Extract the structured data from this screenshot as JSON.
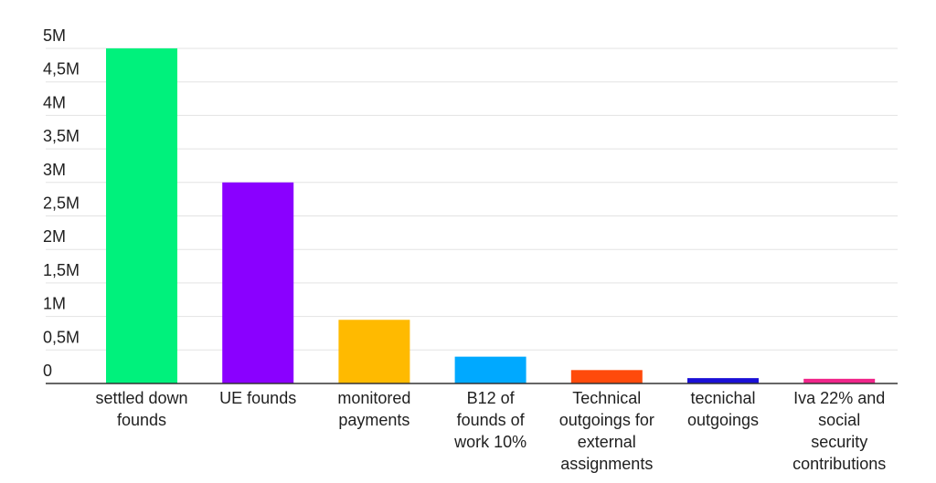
{
  "chart_data": {
    "type": "bar",
    "title": "",
    "xlabel": "",
    "ylabel": "",
    "ylim": [
      0,
      5000000
    ],
    "grid": true,
    "legend": "none",
    "y_ticks": [
      {
        "value": 0,
        "label": "0"
      },
      {
        "value": 500000,
        "label": "0,5M"
      },
      {
        "value": 1000000,
        "label": "1M"
      },
      {
        "value": 1500000,
        "label": "1,5M"
      },
      {
        "value": 2000000,
        "label": "2M"
      },
      {
        "value": 2500000,
        "label": "2,5M"
      },
      {
        "value": 3000000,
        "label": "3M"
      },
      {
        "value": 3500000,
        "label": "3,5M"
      },
      {
        "value": 4000000,
        "label": "4M"
      },
      {
        "value": 4500000,
        "label": "4,5M"
      },
      {
        "value": 5000000,
        "label": "5M"
      }
    ],
    "categories": [
      [
        "settled down",
        "founds"
      ],
      [
        "UE founds"
      ],
      [
        "monitored",
        "payments"
      ],
      [
        "B12 of",
        "founds of",
        "work 10%"
      ],
      [
        "Technical",
        "outgoings for",
        "external",
        "assignments"
      ],
      [
        "tecnichal",
        "outgoings"
      ],
      [
        "Iva 22% and",
        "social",
        "security",
        "contributions"
      ]
    ],
    "values": [
      5000000,
      3000000,
      950000,
      400000,
      200000,
      80000,
      70000
    ],
    "colors": [
      "#00f17c",
      "#8a00ff",
      "#ffba00",
      "#00a9ff",
      "#ff4a0b",
      "#1a10d6",
      "#f0268a"
    ]
  }
}
